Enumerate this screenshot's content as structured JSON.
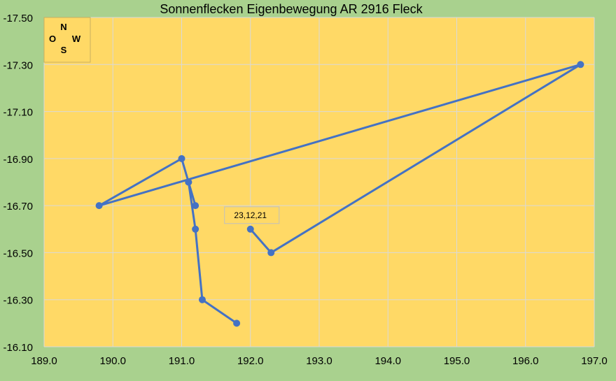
{
  "chart_data": {
    "type": "line",
    "title": "Sonnenflecken Eigenbewegung AR 2916 Fleck",
    "xlim": [
      189.0,
      197.0
    ],
    "ylim": [
      -17.5,
      -16.1
    ],
    "y_reversed": true,
    "x_ticks": [
      "189.0",
      "190.0",
      "191.0",
      "192.0",
      "193.0",
      "194.0",
      "195.0",
      "196.0",
      "197.0"
    ],
    "y_ticks": [
      "-17.50",
      "-17.30",
      "-17.10",
      "-16.90",
      "-16.70",
      "-16.50",
      "-16.30",
      "-16.10"
    ],
    "grid": true,
    "series": [
      {
        "x": [
          191.8,
          191.3,
          191.2,
          191.1,
          191.2,
          191.1,
          191.0,
          189.8,
          196.8,
          192.3,
          192.0
        ],
        "y": [
          -16.2,
          -16.3,
          -16.6,
          -16.8,
          -16.7,
          -16.8,
          -16.9,
          -16.7,
          -17.3,
          -16.5,
          -16.6
        ]
      }
    ],
    "annotations": [
      {
        "text": "23,12,21",
        "x": 192.0,
        "y": -16.6
      }
    ],
    "compass": {
      "north": "N",
      "west": "W",
      "east": "O",
      "south": "S"
    },
    "colors": {
      "background": "#a9d18e",
      "plot": "#ffd966",
      "series": "#4472c4",
      "grid": "#d9d9d9"
    }
  }
}
